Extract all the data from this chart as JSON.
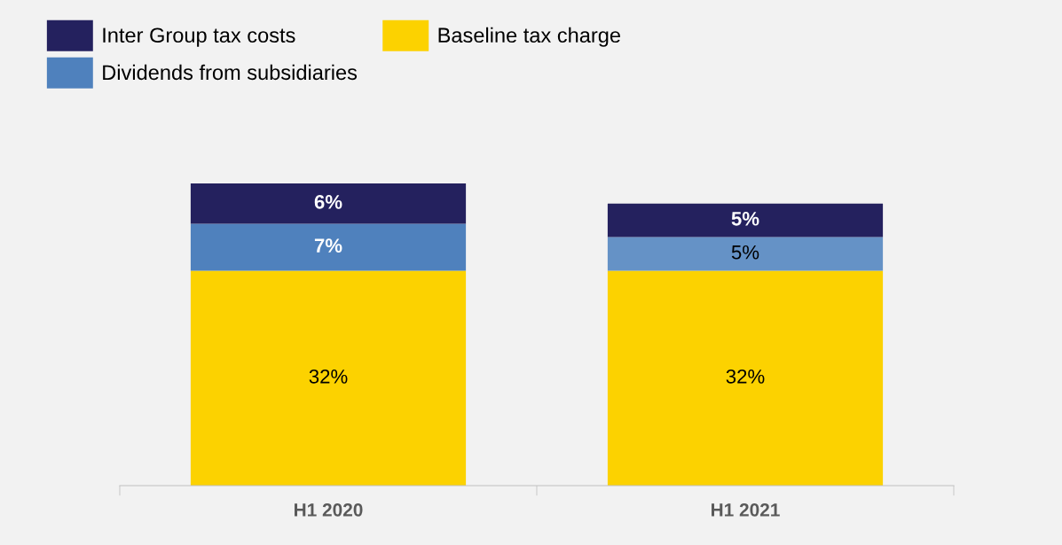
{
  "chart_data": {
    "type": "bar",
    "stacked": true,
    "categories": [
      "H1 2020",
      "H1 2021"
    ],
    "series": [
      {
        "name": "Baseline tax charge",
        "color": "#fcd200",
        "values": [
          32,
          32
        ],
        "value_labels": [
          "32%",
          "32%"
        ]
      },
      {
        "name": "Dividends from subsidiaries",
        "color": "#4f81bd",
        "colors": [
          "#4f81bd",
          "#6592c6"
        ],
        "values": [
          7,
          5
        ],
        "value_labels": [
          "7%",
          "5%"
        ]
      },
      {
        "name": "Inter Group tax costs",
        "color": "#24215e",
        "values": [
          6,
          5
        ],
        "value_labels": [
          "6%",
          "5%"
        ]
      }
    ],
    "legend": "top left",
    "tick_labels": "x",
    "grid": false
  }
}
